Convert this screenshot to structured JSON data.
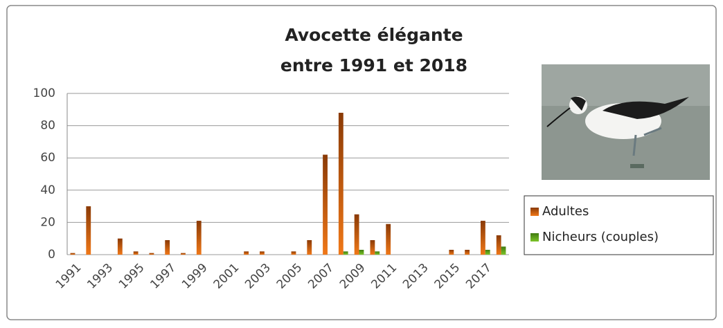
{
  "chart_data": {
    "type": "bar",
    "title": [
      "Avocette élégante",
      "entre 1991 et 2018"
    ],
    "categories": [
      1991,
      null,
      1993,
      null,
      1995,
      null,
      1997,
      null,
      1999,
      null,
      2001,
      null,
      2003,
      null,
      2005,
      null,
      2007,
      null,
      2009,
      null,
      2011,
      null,
      2013,
      null,
      2015,
      null,
      2017,
      null
    ],
    "series": [
      {
        "name": "Adultes",
        "color": "#f07818",
        "values": [
          1,
          30,
          0,
          10,
          2,
          1,
          9,
          1,
          21,
          0,
          0,
          2,
          2,
          0,
          2,
          9,
          62,
          88,
          25,
          9,
          19,
          0,
          0,
          0,
          3,
          3,
          21,
          12
        ]
      },
      {
        "name": "Nicheurs (couples)",
        "color": "#7cc428",
        "values": [
          0,
          0,
          0,
          0,
          0,
          0,
          0,
          0,
          0,
          0,
          0,
          0,
          0,
          0,
          0,
          0,
          0,
          2,
          3,
          2,
          0,
          0,
          0,
          0,
          0,
          0,
          3,
          5
        ]
      }
    ],
    "ylim": [
      0,
      100
    ],
    "yticks": [
      0,
      20,
      40,
      60,
      80,
      100
    ],
    "grid": true
  }
}
